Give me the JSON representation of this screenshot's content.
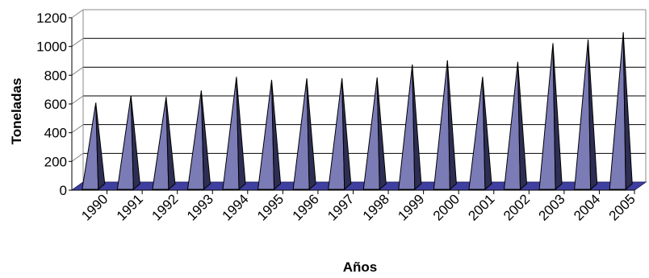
{
  "chart_data": {
    "type": "bar",
    "style": "3d-pyramid",
    "title": "",
    "xlabel": "Años",
    "ylabel": "Toneladas",
    "ylim": [
      0,
      1200
    ],
    "yticks": [
      "0",
      "200",
      "400",
      "600",
      "800",
      "1000",
      "1200"
    ],
    "grid": true,
    "legend": "none",
    "categories": [
      "1990",
      "1991",
      "1992",
      "1993",
      "1994",
      "1995",
      "1996",
      "1997",
      "1998",
      "1999",
      "2000",
      "2001",
      "2002",
      "2003",
      "2004",
      "2005"
    ],
    "values": [
      580,
      630,
      620,
      665,
      760,
      740,
      750,
      750,
      755,
      845,
      875,
      760,
      865,
      995,
      1020,
      1070
    ],
    "colors": {
      "pyramid_front": "#7b7bb6",
      "pyramid_side": "#2e2e54",
      "floor": "#3f3fa0",
      "floor_edge": "#23236a",
      "gridline": "#000000"
    }
  }
}
